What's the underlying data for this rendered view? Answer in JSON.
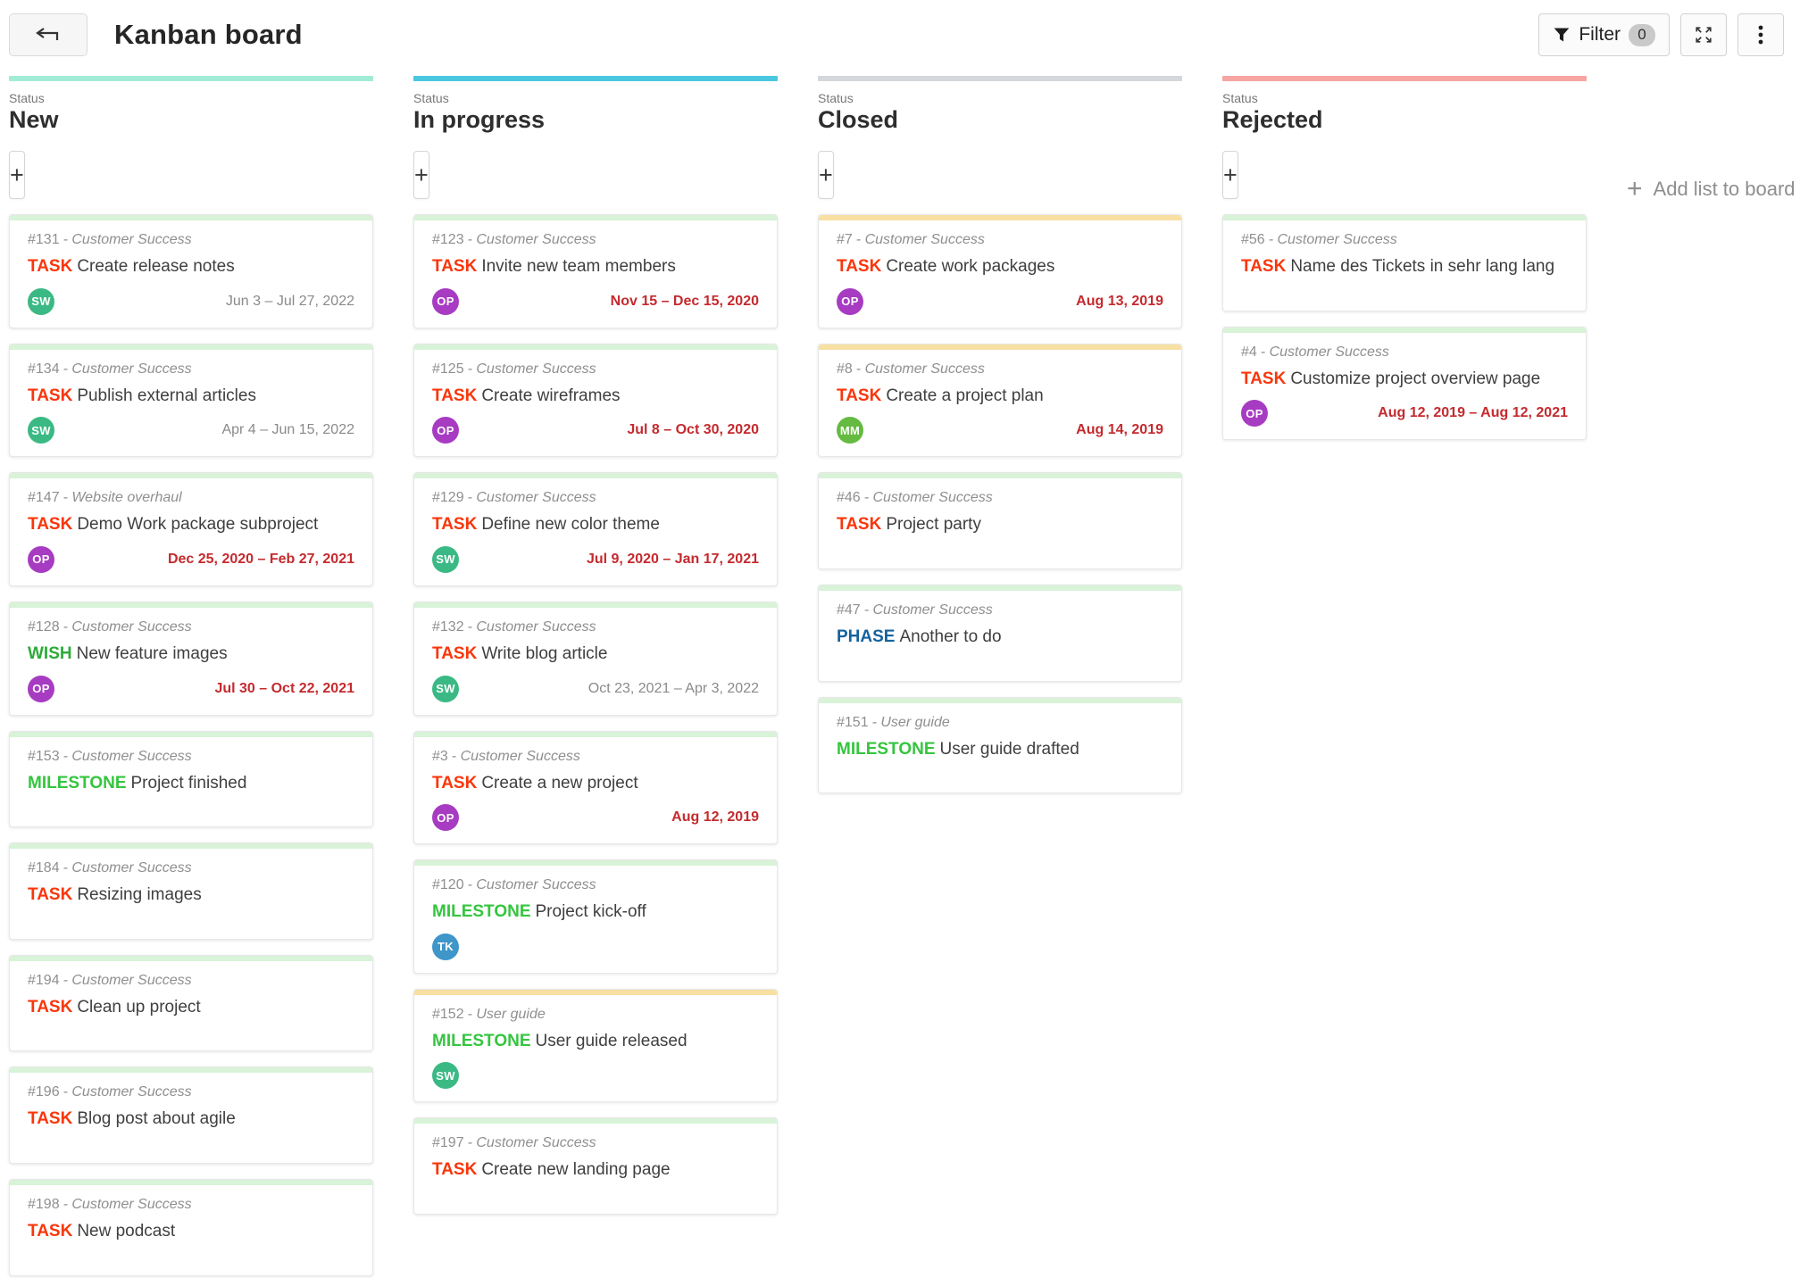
{
  "header": {
    "title": "Kanban board",
    "filter_button": {
      "label": "Filter",
      "count": "0"
    }
  },
  "board": {
    "add_card_label": "+",
    "add_list": {
      "label": "Add list to board"
    },
    "columns": [
      {
        "attribute": "Status",
        "name": "New",
        "strip_color": "#a2ebd6",
        "cards": [
          {
            "id": "#131",
            "project": "- Customer Success",
            "type": "TASK",
            "type_color": "#f9360b",
            "title": "Create release notes",
            "strip_color": "#d8f3d7",
            "avatar": {
              "initials": "SW",
              "color": "#3bb984"
            },
            "due": {
              "text": "Jun 3 – Jul 27, 2022",
              "overdue": false
            }
          },
          {
            "id": "#134",
            "project": "- Customer Success",
            "type": "TASK",
            "type_color": "#f9360b",
            "title": "Publish external articles",
            "strip_color": "#d8f3d7",
            "avatar": {
              "initials": "SW",
              "color": "#3bb984"
            },
            "due": {
              "text": "Apr 4 – Jun 15, 2022",
              "overdue": false
            }
          },
          {
            "id": "#147",
            "project": "- Website overhaul",
            "type": "TASK",
            "type_color": "#f9360b",
            "title": "Demo Work package subproject",
            "strip_color": "#d8f3d7",
            "avatar": {
              "initials": "OP",
              "color": "#a73bc2"
            },
            "due": {
              "text": "Dec 25, 2020 – Feb 27, 2021",
              "overdue": true
            }
          },
          {
            "id": "#128",
            "project": "- Customer Success",
            "type": "WISH",
            "type_color": "#2cab38",
            "title": "New feature images",
            "strip_color": "#d8f3d7",
            "avatar": {
              "initials": "OP",
              "color": "#a73bc2"
            },
            "due": {
              "text": "Jul 30 – Oct 22, 2021",
              "overdue": true
            }
          },
          {
            "id": "#153",
            "project": "- Customer Success",
            "type": "MILESTONE",
            "type_color": "#35c53f",
            "title": "Project finished",
            "strip_color": "#d8f3d7"
          },
          {
            "id": "#184",
            "project": "- Customer Success",
            "type": "TASK",
            "type_color": "#f9360b",
            "title": "Resizing images",
            "strip_color": "#d8f3d7"
          },
          {
            "id": "#194",
            "project": "- Customer Success",
            "type": "TASK",
            "type_color": "#f9360b",
            "title": "Clean up project",
            "strip_color": "#d8f3d7"
          },
          {
            "id": "#196",
            "project": "- Customer Success",
            "type": "TASK",
            "type_color": "#f9360b",
            "title": "Blog post about agile",
            "strip_color": "#d8f3d7"
          },
          {
            "id": "#198",
            "project": "- Customer Success",
            "type": "TASK",
            "type_color": "#f9360b",
            "title": "New podcast",
            "strip_color": "#d8f3d7"
          }
        ]
      },
      {
        "attribute": "Status",
        "name": "In progress",
        "strip_color": "#49c7e0",
        "cards": [
          {
            "id": "#123",
            "project": "- Customer Success",
            "type": "TASK",
            "type_color": "#f9360b",
            "title": "Invite new team members",
            "strip_color": "#d8f3d7",
            "avatar": {
              "initials": "OP",
              "color": "#a73bc2"
            },
            "due": {
              "text": "Nov 15 – Dec 15, 2020",
              "overdue": true
            }
          },
          {
            "id": "#125",
            "project": "- Customer Success",
            "type": "TASK",
            "type_color": "#f9360b",
            "title": "Create wireframes",
            "strip_color": "#d8f3d7",
            "avatar": {
              "initials": "OP",
              "color": "#a73bc2"
            },
            "due": {
              "text": "Jul 8 – Oct 30, 2020",
              "overdue": true
            }
          },
          {
            "id": "#129",
            "project": "- Customer Success",
            "type": "TASK",
            "type_color": "#f9360b",
            "title": "Define new color theme",
            "strip_color": "#d8f3d7",
            "avatar": {
              "initials": "SW",
              "color": "#3bb984"
            },
            "due": {
              "text": "Jul 9, 2020 – Jan 17, 2021",
              "overdue": true
            }
          },
          {
            "id": "#132",
            "project": "- Customer Success",
            "type": "TASK",
            "type_color": "#f9360b",
            "title": "Write blog article",
            "strip_color": "#d8f3d7",
            "avatar": {
              "initials": "SW",
              "color": "#3bb984"
            },
            "due": {
              "text": "Oct 23, 2021 – Apr 3, 2022",
              "overdue": false
            }
          },
          {
            "id": "#3",
            "project": "- Customer Success",
            "type": "TASK",
            "type_color": "#f9360b",
            "title": "Create a new project",
            "strip_color": "#d8f3d7",
            "avatar": {
              "initials": "OP",
              "color": "#a73bc2"
            },
            "due": {
              "text": "Aug 12, 2019",
              "overdue": true
            }
          },
          {
            "id": "#120",
            "project": "- Customer Success",
            "type": "MILESTONE",
            "type_color": "#35c53f",
            "title": "Project kick-off",
            "strip_color": "#d8f3d7",
            "avatar": {
              "initials": "TK",
              "color": "#3e96c9"
            }
          },
          {
            "id": "#152",
            "project": "- User guide",
            "type": "MILESTONE",
            "type_color": "#35c53f",
            "title": "User guide released",
            "strip_color": "#f8e0a2",
            "avatar": {
              "initials": "SW",
              "color": "#3bb984"
            }
          },
          {
            "id": "#197",
            "project": "- Customer Success",
            "type": "TASK",
            "type_color": "#f9360b",
            "title": "Create new landing page",
            "strip_color": "#d8f3d7"
          }
        ]
      },
      {
        "attribute": "Status",
        "name": "Closed",
        "strip_color": "#d4d7db",
        "cards": [
          {
            "id": "#7",
            "project": "- Customer Success",
            "type": "TASK",
            "type_color": "#f9360b",
            "title": "Create work packages",
            "strip_color": "#f8e0a2",
            "avatar": {
              "initials": "OP",
              "color": "#a73bc2"
            },
            "due": {
              "text": "Aug 13, 2019",
              "overdue": true
            }
          },
          {
            "id": "#8",
            "project": "- Customer Success",
            "type": "TASK",
            "type_color": "#f9360b",
            "title": "Create a project plan",
            "strip_color": "#f8e0a2",
            "avatar": {
              "initials": "MM",
              "color": "#65ba41"
            },
            "due": {
              "text": "Aug 14, 2019",
              "overdue": true
            }
          },
          {
            "id": "#46",
            "project": "- Customer Success",
            "type": "TASK",
            "type_color": "#f9360b",
            "title": "Project party",
            "strip_color": "#d8f3d7"
          },
          {
            "id": "#47",
            "project": "- Customer Success",
            "type": "PHASE",
            "type_color": "#14629e",
            "title": "Another to do",
            "strip_color": "#d8f3d7"
          },
          {
            "id": "#151",
            "project": "- User guide",
            "type": "MILESTONE",
            "type_color": "#35c53f",
            "title": "User guide drafted",
            "strip_color": "#d8f3d7"
          }
        ]
      },
      {
        "attribute": "Status",
        "name": "Rejected",
        "strip_color": "#f7a5a2",
        "cards": [
          {
            "id": "#56",
            "project": "- Customer Success",
            "type": "TASK",
            "type_color": "#f9360b",
            "title": "Name des Tickets in sehr lang lang",
            "strip_color": "#d8f3d7"
          },
          {
            "id": "#4",
            "project": "- Customer Success",
            "type": "TASK",
            "type_color": "#f9360b",
            "title": "Customize project overview page",
            "strip_color": "#d8f3d7",
            "avatar": {
              "initials": "OP",
              "color": "#a73bc2"
            },
            "due": {
              "text": "Aug 12, 2019 – Aug 12, 2021",
              "overdue": true
            }
          }
        ]
      }
    ]
  }
}
